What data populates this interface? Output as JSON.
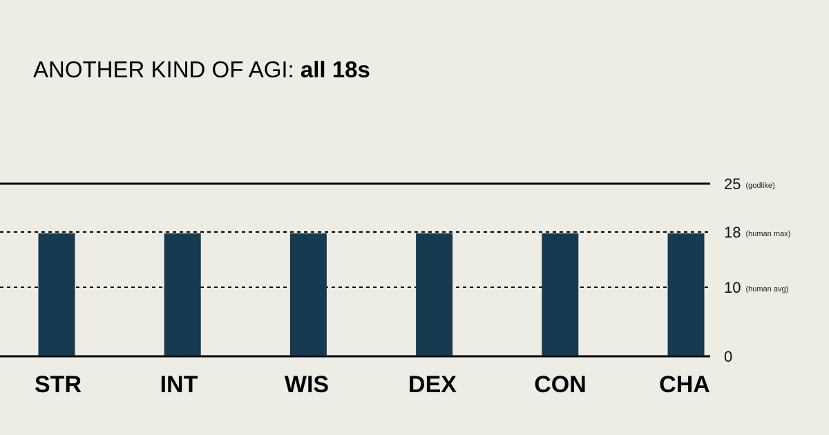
{
  "chart_data": {
    "type": "bar",
    "title": {
      "prefix": "ANOTHER KIND OF AGI: ",
      "emphasis": "all 18s"
    },
    "categories": [
      "STR",
      "INT",
      "WIS",
      "DEX",
      "CON",
      "CHA"
    ],
    "values": [
      18,
      18,
      18,
      18,
      18,
      18
    ],
    "ylim": [
      0,
      25
    ],
    "xlabel": "",
    "ylabel": "",
    "grid": false,
    "reference_lines": [
      {
        "value": 25,
        "label": "25",
        "note": "(godlike)",
        "style": "solid"
      },
      {
        "value": 18,
        "label": "18",
        "note": "(human max)",
        "style": "dashed"
      },
      {
        "value": 10,
        "label": "10",
        "note": "(human avg)",
        "style": "dashed"
      },
      {
        "value": 0,
        "label": "0",
        "note": "",
        "style": "solid"
      }
    ],
    "colors": {
      "bar": "#163a4f",
      "background": "#edece5",
      "lines": "#000000"
    }
  }
}
